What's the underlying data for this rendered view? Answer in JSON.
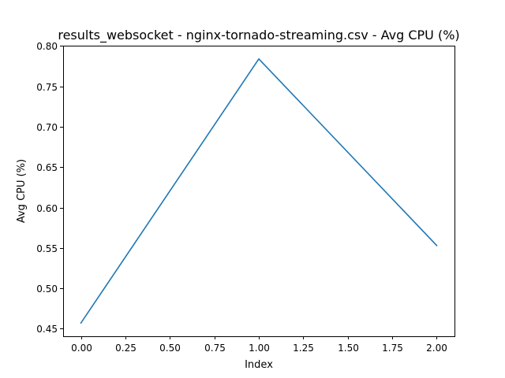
{
  "chart_data": {
    "type": "line",
    "title": "results_websocket - nginx-tornado-streaming.csv - Avg CPU (%)",
    "xlabel": "Index",
    "ylabel": "Avg CPU (%)",
    "x": [
      0,
      1,
      2
    ],
    "series": [
      {
        "name": "",
        "values": [
          0.457,
          0.784,
          0.553
        ],
        "color": "#1f77b4"
      }
    ],
    "xlim": [
      -0.1,
      2.1
    ],
    "ylim": [
      0.4406,
      0.8004
    ],
    "xticks": [
      0.0,
      0.25,
      0.5,
      0.75,
      1.0,
      1.25,
      1.5,
      1.75,
      2.0
    ],
    "xtick_labels": [
      "0.00",
      "0.25",
      "0.50",
      "0.75",
      "1.00",
      "1.25",
      "1.50",
      "1.75",
      "2.00"
    ],
    "yticks": [
      0.45,
      0.5,
      0.55,
      0.6,
      0.65,
      0.7,
      0.75,
      0.8
    ],
    "ytick_labels": [
      "0.45",
      "0.50",
      "0.55",
      "0.60",
      "0.65",
      "0.70",
      "0.75",
      "0.80"
    ],
    "grid": false,
    "legend": false
  }
}
